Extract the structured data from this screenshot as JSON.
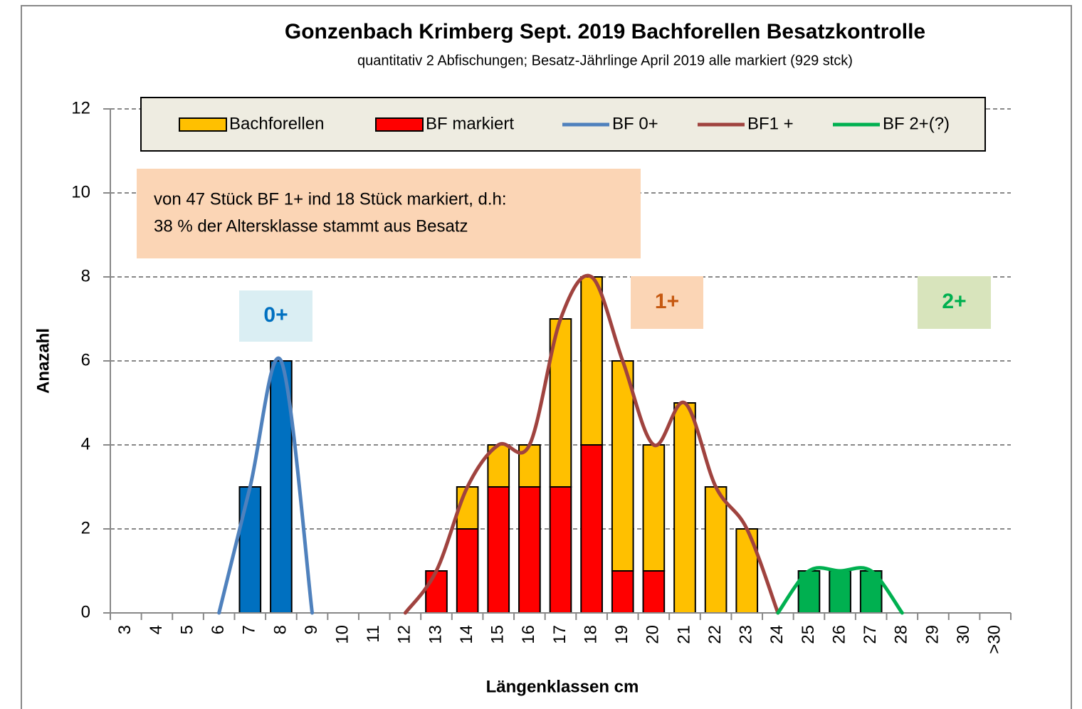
{
  "chart_data": {
    "type": "bar",
    "title": "Gonzenbach  Krimberg Sept. 2019 Bachforellen Besatzkontrolle",
    "subtitle": "quantitativ 2 Abfischungen; Besatz-Jährlinge April 2019 alle markiert (929 stck)",
    "x_label": "Längenklassen cm",
    "y_label": "Anazahl",
    "categories": [
      "3",
      "4",
      "5",
      "6",
      "7",
      "8",
      "9",
      "10",
      "11",
      "12",
      "13",
      "14",
      "15",
      "16",
      "17",
      "18",
      "19",
      "20",
      "21",
      "22",
      "23",
      "24",
      "25",
      "26",
      "27",
      "28",
      "29",
      "30",
      ">30"
    ],
    "series": [
      {
        "name": "BF markiert",
        "kind": "bar",
        "color": "#ff0000",
        "values": [
          null,
          null,
          null,
          null,
          null,
          null,
          null,
          null,
          null,
          null,
          1,
          2,
          3,
          3,
          3,
          4,
          1,
          1,
          null,
          null,
          null,
          null,
          null,
          null,
          null,
          null,
          null,
          null,
          null
        ]
      },
      {
        "name": "Bachforellen",
        "kind": "bar",
        "color": "#ffc000",
        "point_colors": {
          "4": "#0070c0",
          "5": "#0070c0",
          "22": "#00b050",
          "23": "#00b050",
          "24": "#00b050"
        },
        "values": [
          null,
          null,
          null,
          null,
          3,
          6,
          null,
          null,
          null,
          null,
          0,
          1,
          1,
          1,
          4,
          4,
          5,
          3,
          5,
          3,
          2,
          null,
          1,
          1,
          1,
          null,
          null,
          null,
          null
        ]
      },
      {
        "name": "BF 0+",
        "kind": "line",
        "color": "#4f81bd",
        "values": [
          null,
          null,
          null,
          0,
          3,
          6,
          0,
          null,
          null,
          null,
          null,
          null,
          null,
          null,
          null,
          null,
          null,
          null,
          null,
          null,
          null,
          null,
          null,
          null,
          null,
          null,
          null,
          null,
          null
        ]
      },
      {
        "name": "BF1 +",
        "kind": "line",
        "color": "#a0433f",
        "values": [
          null,
          null,
          null,
          null,
          null,
          null,
          null,
          null,
          null,
          0,
          1,
          3,
          4,
          4,
          7,
          8,
          6,
          4,
          5,
          3,
          2,
          0,
          null,
          null,
          null,
          null,
          null,
          null,
          null
        ]
      },
      {
        "name": "BF 2+(?)",
        "kind": "line",
        "color": "#00b050",
        "values": [
          null,
          null,
          null,
          null,
          null,
          null,
          null,
          null,
          null,
          null,
          null,
          null,
          null,
          null,
          null,
          null,
          null,
          null,
          null,
          null,
          null,
          0,
          1,
          1,
          1,
          0,
          null,
          null,
          null
        ]
      }
    ],
    "ylim": [
      0,
      12
    ],
    "yticks": [
      0,
      2,
      4,
      6,
      8,
      10,
      12
    ],
    "grid": true,
    "stacked": true,
    "legend": "top",
    "annotations": [
      {
        "text": [
          "von 47 Stück BF 1+ ind  18 Stück  markiert, d.h:",
          "38 % der  Altersklasse stammt aus Besatz"
        ],
        "color": "#000000",
        "background": "#fbd5b5"
      },
      {
        "text": [
          "0+"
        ],
        "color": "#0070c0",
        "background": "#daeef3"
      },
      {
        "text": [
          "1+"
        ],
        "color": "#c65911",
        "background": "#fbd5b5"
      },
      {
        "text": [
          "2+"
        ],
        "color": "#00b050",
        "background": "#d8e4bc"
      }
    ]
  }
}
